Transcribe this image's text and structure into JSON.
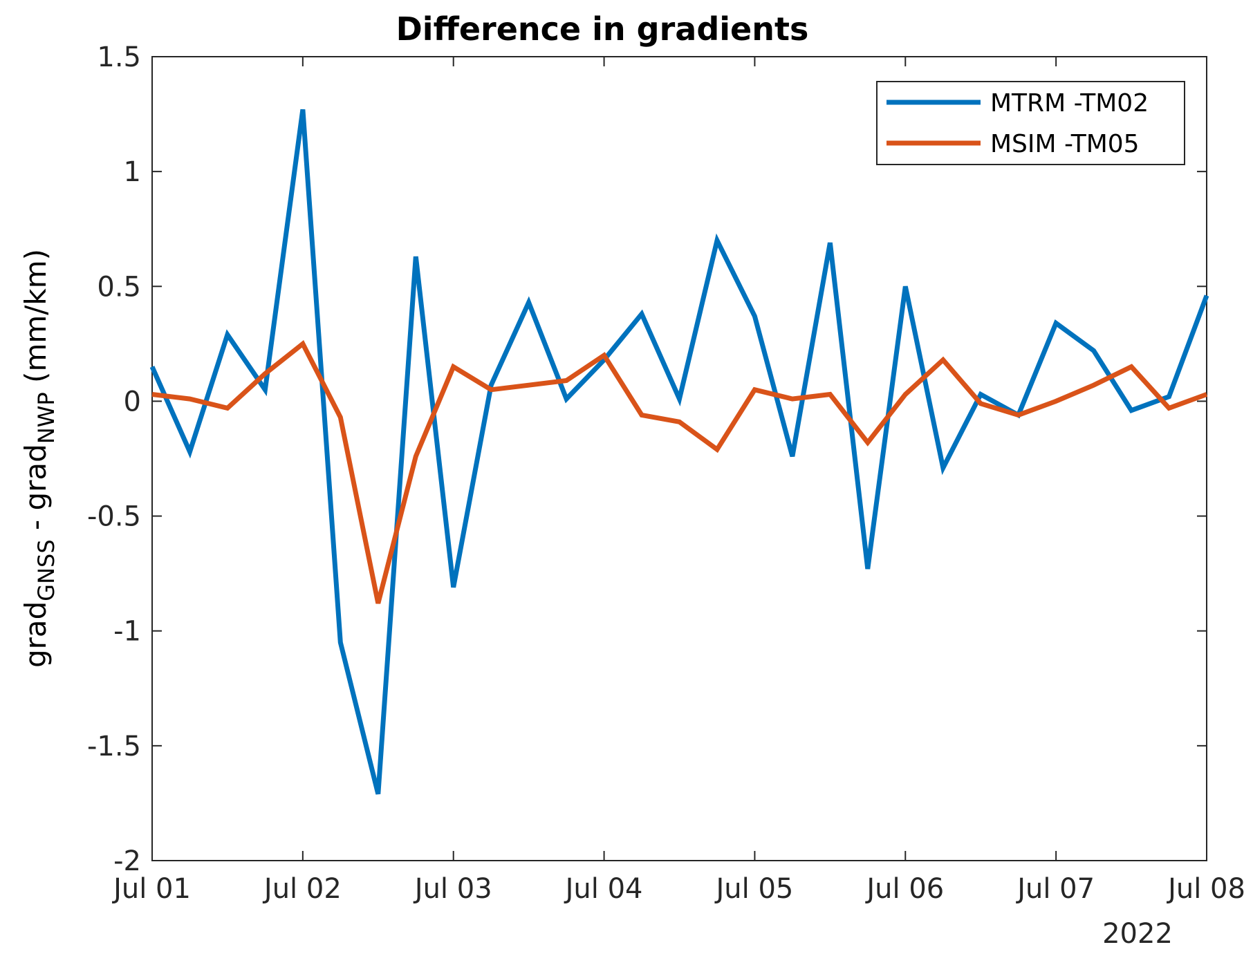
{
  "chart_data": {
    "type": "line",
    "title": "Difference in gradients",
    "ylabel": {
      "base1": "grad",
      "sub1": "GNSS",
      "mid": " - grad",
      "sub2": "NWP",
      "tail": " (mm/km)"
    },
    "xlabel": "",
    "x_ticks": [
      "Jul 01",
      "Jul 02",
      "Jul 03",
      "Jul 04",
      "Jul 05",
      "Jul 06",
      "Jul 07",
      "Jul 08"
    ],
    "x_secondary_label": "2022",
    "xlim": [
      "2022-07-01",
      "2022-07-08"
    ],
    "y_ticks": [
      "1.5",
      "1",
      "0.5",
      "0",
      "-0.5",
      "-1",
      "-1.5",
      "-2"
    ],
    "ylim": [
      -2,
      1.5
    ],
    "grid": false,
    "legend_position": "top-right",
    "x": [
      "2022-07-01 00:00",
      "2022-07-01 06:00",
      "2022-07-01 12:00",
      "2022-07-01 18:00",
      "2022-07-02 00:00",
      "2022-07-02 06:00",
      "2022-07-02 12:00",
      "2022-07-02 18:00",
      "2022-07-03 00:00",
      "2022-07-03 06:00",
      "2022-07-03 12:00",
      "2022-07-03 18:00",
      "2022-07-04 00:00",
      "2022-07-04 06:00",
      "2022-07-04 12:00",
      "2022-07-04 18:00",
      "2022-07-05 00:00",
      "2022-07-05 06:00",
      "2022-07-05 12:00",
      "2022-07-05 18:00",
      "2022-07-06 00:00",
      "2022-07-06 06:00",
      "2022-07-06 12:00",
      "2022-07-06 18:00",
      "2022-07-07 00:00",
      "2022-07-07 06:00",
      "2022-07-07 12:00",
      "2022-07-07 18:00",
      "2022-07-08 00:00"
    ],
    "series": [
      {
        "name": "MTRM -TM02",
        "color": "#0072BD",
        "values": [
          0.15,
          -0.22,
          0.29,
          0.05,
          1.27,
          -1.05,
          -1.71,
          0.63,
          -0.81,
          0.07,
          0.43,
          0.01,
          0.18,
          0.38,
          0.01,
          0.7,
          0.37,
          -0.24,
          0.69,
          -0.73,
          0.5,
          -0.29,
          0.03,
          -0.06,
          0.34,
          0.22,
          -0.04,
          0.02,
          0.46
        ]
      },
      {
        "name": "MSIM -TM05",
        "color": "#D95319",
        "values": [
          0.03,
          0.01,
          -0.03,
          0.12,
          0.25,
          -0.07,
          -0.88,
          -0.24,
          0.15,
          0.05,
          0.07,
          0.09,
          0.2,
          -0.06,
          -0.09,
          -0.21,
          0.05,
          0.01,
          0.03,
          -0.18,
          0.03,
          0.18,
          -0.01,
          -0.06,
          0.0,
          0.07,
          0.15,
          -0.03,
          0.03
        ]
      }
    ]
  }
}
